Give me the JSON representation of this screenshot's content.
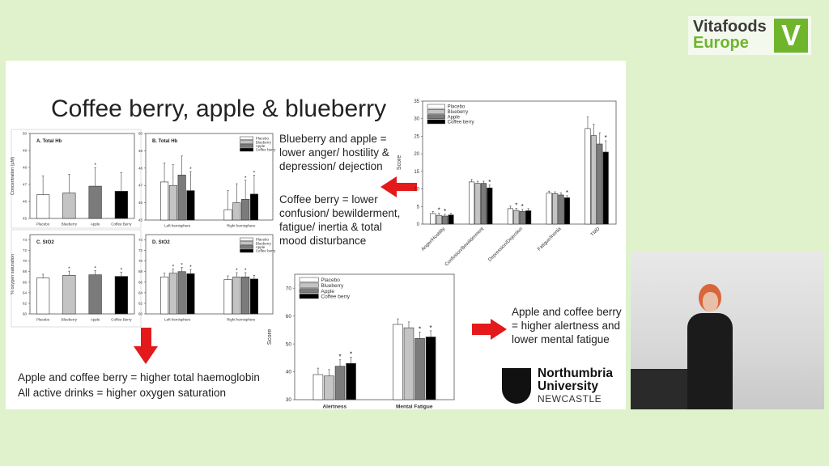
{
  "slide": {
    "title": "Coffee berry, apple & blueberry",
    "text_blueberry_apple": "Blueberry and apple = lower anger/ hostility & depression/ dejection",
    "text_coffee_berry": "Coffee berry = lower confusion/ bewilderment, fatigue/ inertia & total mood disturbance",
    "text_haemoglobin_1": "Apple and coffee berry = higher total haemoglobin",
    "text_haemoglobin_2": "All active drinks = higher oxygen saturation",
    "text_alertness": "Apple and coffee berry = higher alertness and lower mental fatigue",
    "arrow_color": "#e3191b",
    "university_logo": {
      "line1": "Northumbria",
      "line2": "University",
      "line3": "NEWCASTLE"
    }
  },
  "event_logo": {
    "line1": "Vitafoods",
    "line2": "Europe",
    "mark": "V",
    "color": "#6fb52c"
  },
  "series_colors": {
    "Placebo": "#ffffff",
    "Blueberry": "#c4c4c4",
    "Apple": "#7b7b7b",
    "Coffee berry": "#000000"
  },
  "chart_data": [
    {
      "type": "bar",
      "title": "A. Total Hb",
      "ylabel": "Concentration (µM)",
      "ylim": [
        45,
        50
      ],
      "yticks": [
        45,
        46,
        47,
        48,
        49,
        50
      ],
      "categories": [
        "Placebo",
        "Blueberry",
        "Apple",
        "Coffee Berry"
      ],
      "legend": false,
      "per_category_colors": true,
      "series": [
        {
          "values": [
            46.4,
            46.5,
            46.9,
            46.6
          ],
          "errors": [
            1.1,
            1.1,
            1.1,
            1.1
          ],
          "stars": [
            false,
            false,
            true,
            false
          ]
        }
      ]
    },
    {
      "type": "bar",
      "title": "B. Total Hb",
      "ylabel": "",
      "ylim": [
        45,
        50
      ],
      "yticks": [
        45,
        46,
        47,
        48,
        49,
        50
      ],
      "categories": [
        "Left hemisphere",
        "Right hemisphere"
      ],
      "legend": "top-right",
      "series": [
        {
          "name": "Placebo",
          "values": [
            47.2,
            45.6
          ],
          "errors": [
            1.1,
            1.1
          ],
          "stars": [
            false,
            false
          ]
        },
        {
          "name": "Blueberry",
          "values": [
            47.0,
            46.0
          ],
          "errors": [
            1.2,
            1.1
          ],
          "stars": [
            false,
            false
          ]
        },
        {
          "name": "Apple",
          "values": [
            47.6,
            46.2
          ],
          "errors": [
            1.1,
            1.1
          ],
          "stars": [
            false,
            true
          ]
        },
        {
          "name": "Coffee berry",
          "values": [
            46.7,
            46.5
          ],
          "errors": [
            1.1,
            1.1
          ],
          "stars": [
            true,
            true
          ]
        }
      ]
    },
    {
      "type": "bar",
      "title": "C. StO2",
      "ylabel": "% oxygen saturation",
      "ylim": [
        60,
        75
      ],
      "yticks": [
        60,
        62,
        64,
        66,
        68,
        70,
        72,
        74
      ],
      "categories": [
        "Placebo",
        "Blueberry",
        "Apple",
        "Coffee Berry"
      ],
      "legend": false,
      "per_category_colors": true,
      "series": [
        {
          "values": [
            66.8,
            67.3,
            67.4,
            67.1
          ],
          "errors": [
            0.7,
            0.8,
            0.8,
            0.8
          ],
          "stars": [
            false,
            true,
            true,
            true
          ]
        }
      ]
    },
    {
      "type": "bar",
      "title": "D. StO2",
      "ylabel": "",
      "ylim": [
        60,
        75
      ],
      "yticks": [
        60,
        62,
        64,
        66,
        68,
        70,
        72,
        74
      ],
      "categories": [
        "Left hemisphere",
        "Right hemisphere"
      ],
      "legend": "top-right",
      "series": [
        {
          "name": "Placebo",
          "values": [
            67.0,
            66.5
          ],
          "errors": [
            0.7,
            0.7
          ],
          "stars": [
            false,
            false
          ]
        },
        {
          "name": "Blueberry",
          "values": [
            67.7,
            67.0
          ],
          "errors": [
            0.8,
            0.8
          ],
          "stars": [
            true,
            true
          ]
        },
        {
          "name": "Apple",
          "values": [
            68.0,
            67.0
          ],
          "errors": [
            0.8,
            0.8
          ],
          "stars": [
            true,
            true
          ]
        },
        {
          "name": "Coffee berry",
          "values": [
            67.6,
            66.6
          ],
          "errors": [
            0.8,
            0.7
          ],
          "stars": [
            true,
            false
          ]
        }
      ]
    },
    {
      "type": "bar",
      "title": "",
      "ylabel": "Score",
      "ylim": [
        0,
        35
      ],
      "yticks": [
        0,
        5,
        10,
        15,
        20,
        25,
        30,
        35
      ],
      "categories": [
        "Anger/Hostility",
        "Confusion/Bewilderment",
        "Depression/Dejection",
        "Fatigue/Inertia",
        "TMD"
      ],
      "legend": "top-left",
      "rotate_labels": true,
      "series": [
        {
          "name": "Placebo",
          "values": [
            3.0,
            12.0,
            4.4,
            8.8,
            27.2
          ],
          "errors": [
            0.6,
            0.7,
            0.7,
            0.6,
            3.3
          ],
          "stars": [
            false,
            false,
            false,
            false,
            false
          ]
        },
        {
          "name": "Blueberry",
          "values": [
            2.5,
            11.6,
            3.9,
            8.7,
            25.2
          ],
          "errors": [
            0.6,
            0.6,
            0.6,
            0.5,
            3.2
          ],
          "stars": [
            true,
            false,
            true,
            false,
            false
          ]
        },
        {
          "name": "Apple",
          "values": [
            2.3,
            11.6,
            3.6,
            8.3,
            22.8
          ],
          "errors": [
            0.5,
            0.6,
            0.6,
            0.6,
            3.2
          ],
          "stars": [
            true,
            false,
            true,
            false,
            false
          ]
        },
        {
          "name": "Coffee berry",
          "values": [
            2.6,
            10.3,
            3.8,
            7.5,
            20.5
          ],
          "errors": [
            0.5,
            0.8,
            0.6,
            0.6,
            3.2
          ],
          "stars": [
            false,
            true,
            false,
            true,
            true
          ]
        }
      ]
    },
    {
      "type": "bar",
      "title": "",
      "ylabel": "Score",
      "ylim": [
        30,
        75
      ],
      "yticks": [
        30,
        40,
        50,
        60,
        70
      ],
      "categories": [
        "Alertness",
        "Mental Fatigue"
      ],
      "legend": "top-left",
      "series": [
        {
          "name": "Placebo",
          "values": [
            39.0,
            57.0
          ],
          "errors": [
            2.3,
            2.0
          ],
          "stars": [
            false,
            false
          ]
        },
        {
          "name": "Blueberry",
          "values": [
            38.5,
            55.8
          ],
          "errors": [
            2.3,
            2.1
          ],
          "stars": [
            false,
            false
          ]
        },
        {
          "name": "Apple",
          "values": [
            42.0,
            52.0
          ],
          "errors": [
            2.3,
            2.3
          ],
          "stars": [
            true,
            true
          ]
        },
        {
          "name": "Coffee berry",
          "values": [
            43.0,
            52.5
          ],
          "errors": [
            2.3,
            2.2
          ],
          "stars": [
            true,
            true
          ]
        }
      ]
    }
  ]
}
